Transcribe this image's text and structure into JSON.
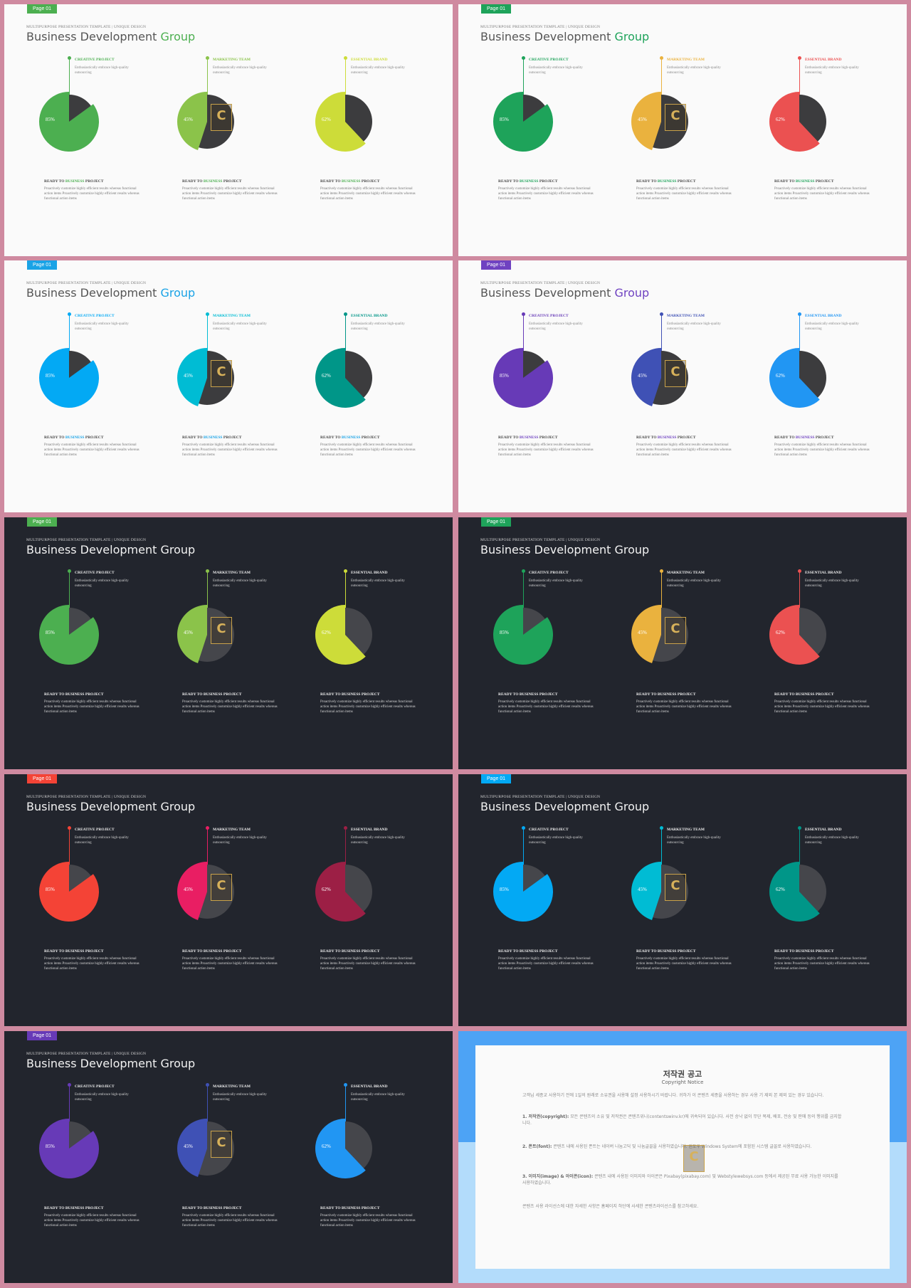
{
  "slide_common": {
    "badge": "Page 01",
    "kicker": "MULTIPURPOSE PRESENTATION TEMPLATE | UNIQUE DESIGN",
    "title_main": "Business Development ",
    "title_accent": "Group",
    "title_full": "Business Development Group",
    "desc": "Enthusiastically embrace high-quality outsourcing",
    "ready_pre": "READY TO ",
    "ready_hl": "BUSINESS",
    "ready_post": " PROJECT",
    "body": "Proactively customize highly efficient results whereas functional action items Proactively customize highly efficient results whereas functional action items",
    "logo_letter": "C"
  },
  "categories": [
    "CREATIVE PROJECT",
    "MARKETING TEAM",
    "ESSENTIAL BRAND"
  ],
  "percents": [
    "85%",
    "45%",
    "62%"
  ],
  "chart_data": {
    "type": "pie",
    "categories": [
      "CREATIVE PROJECT",
      "MARKETING TEAM",
      "ESSENTIAL BRAND"
    ],
    "values": [
      85,
      45,
      62
    ]
  },
  "slides": [
    {
      "theme": "light",
      "accent": "#4caf50",
      "colors": [
        "#4caf50",
        "#8bc34a",
        "#cddc39"
      ]
    },
    {
      "theme": "light",
      "accent": "#1ea35a",
      "colors": [
        "#1ea35a",
        "#eab23e",
        "#eb5151"
      ]
    },
    {
      "theme": "light",
      "accent": "#1aa3e6",
      "colors": [
        "#03a9f4",
        "#00bcd4",
        "#009688"
      ]
    },
    {
      "theme": "light",
      "accent": "#6f42c1",
      "colors": [
        "#673ab7",
        "#3f51b5",
        "#2196f3"
      ]
    },
    {
      "theme": "dark",
      "accent": "#4caf50",
      "colors": [
        "#4caf50",
        "#8bc34a",
        "#cddc39"
      ]
    },
    {
      "theme": "dark",
      "accent": "#1ea35a",
      "colors": [
        "#1ea35a",
        "#eab23e",
        "#eb5151"
      ]
    },
    {
      "theme": "dark",
      "accent": "#f44336",
      "colors": [
        "#f44336",
        "#e91e63",
        "#9c1f45"
      ]
    },
    {
      "theme": "dark",
      "accent": "#03a9f4",
      "colors": [
        "#03a9f4",
        "#00bcd4",
        "#009688"
      ]
    },
    {
      "theme": "dark",
      "accent": "#673ab7",
      "colors": [
        "#673ab7",
        "#3f51b5",
        "#2196f3"
      ]
    }
  ],
  "copyright": {
    "title": "저작권 공고",
    "subtitle": "Copyright Notice",
    "intro": "고객님 세종교 사용하기 전에 1일의 원래로 소유권을 사용해 설정 사용하시기 바랍니다. 귀하가 이 콘텐츠 세종을 사용하는 경우 사용 기 제외 본 제외 있는 경우 있습니다.",
    "p1_head": "1. 저작권(copyright):",
    "p1": " 모든 콘텐츠의 소유 및 저작권은 콘텐츠위니(contentswinv.kr)에 귀속되어 있습니다. 사전 승낙 없이 무단 복제, 배포, 전송 및 판매 등의 행위를 금지합니다.",
    "p2_head": "2. 폰트(font):",
    "p2": " 콘텐츠 내에 사용된 폰트는 네이버 나눔고딕 및 나눔글꼴을 사용하였습니다. 윈도우 Windows System에 포함된 시스템 글꼴로 사용하였습니다.",
    "p3_head": "3. 이미지(image) & 아이콘(icon):",
    "p3": " 콘텐츠 내에 사용된 이미지와 아이콘은 Pixabay(pixabay.com) 및 Webstylewebsys.com 등에서 제공된 무료 사용 가능한 이미지를 사용하였습니다.",
    "outro": "콘텐츠 사용 라이선스에 대한 자세한 사항은 홈페이지 하단에 사세한 콘텐츠라이선스를 참고하세요."
  },
  "colors": {
    "light_bg": "#fafafa",
    "dark_bg": "#22252d",
    "pie_dark": "#3c3c3e",
    "pie_dark_on_dark": "#45464b",
    "border": "#cf8aa0",
    "copyright_top": "#4da3f5",
    "copyright_bottom": "#b3dcfb"
  }
}
